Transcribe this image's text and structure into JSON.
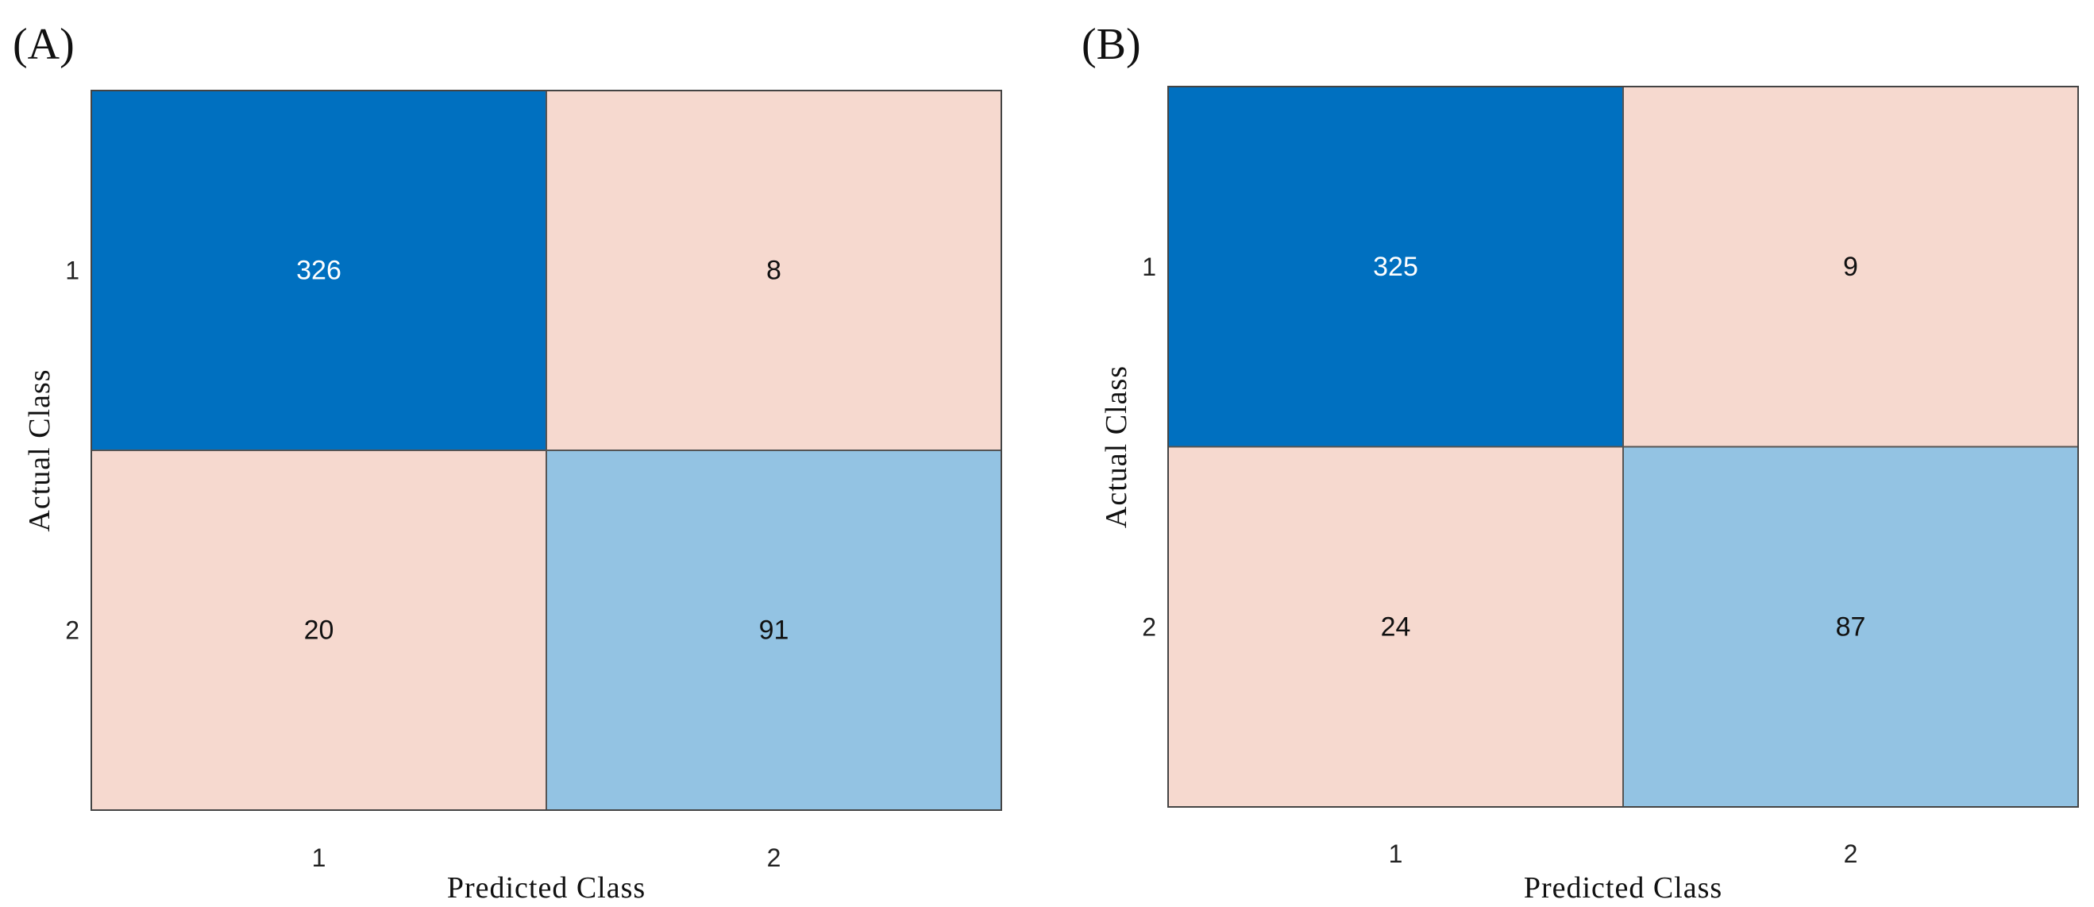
{
  "chart_data": [
    {
      "type": "heatmap",
      "panel_label": "(A)",
      "xlabel": "Predicted Class",
      "ylabel": "Actual Class",
      "x_categories": [
        "1",
        "2"
      ],
      "y_categories": [
        "1",
        "2"
      ],
      "values": [
        [
          326,
          8
        ],
        [
          20,
          91
        ]
      ],
      "cell_colors": [
        [
          "#0070C0",
          "#F6D9CF"
        ],
        [
          "#F6D9CF",
          "#93C3E3"
        ]
      ],
      "text_colors": [
        [
          "#FFFFFF",
          "#111111"
        ],
        [
          "#111111",
          "#111111"
        ]
      ]
    },
    {
      "type": "heatmap",
      "panel_label": "(B)",
      "xlabel": "Predicted Class",
      "ylabel": "Actual Class",
      "x_categories": [
        "1",
        "2"
      ],
      "y_categories": [
        "1",
        "2"
      ],
      "values": [
        [
          325,
          9
        ],
        [
          24,
          87
        ]
      ],
      "cell_colors": [
        [
          "#0070C0",
          "#F6D9CF"
        ],
        [
          "#F6D9CF",
          "#93C3E3"
        ]
      ],
      "text_colors": [
        [
          "#FFFFFF",
          "#111111"
        ],
        [
          "#111111",
          "#111111"
        ]
      ]
    }
  ]
}
